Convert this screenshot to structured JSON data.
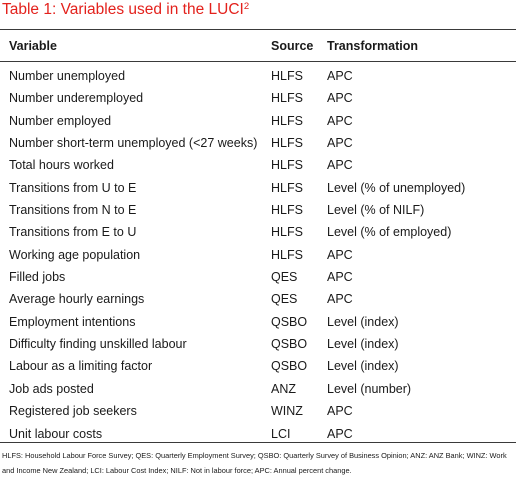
{
  "caption": {
    "text": "Table 1: Variables used in the LUCI",
    "footnote_ref": "2"
  },
  "columns": {
    "variable": "Variable",
    "source": "Source",
    "transformation": "Transformation"
  },
  "rows": [
    {
      "variable": "Number unemployed",
      "source": "HLFS",
      "transformation": "APC"
    },
    {
      "variable": "Number underemployed",
      "source": "HLFS",
      "transformation": "APC"
    },
    {
      "variable": "Number employed",
      "source": "HLFS",
      "transformation": "APC"
    },
    {
      "variable": "Number short-term unemployed (<27 weeks)",
      "source": "HLFS",
      "transformation": "APC"
    },
    {
      "variable": "Total hours worked",
      "source": "HLFS",
      "transformation": "APC"
    },
    {
      "variable": "Transitions from U to E",
      "source": "HLFS",
      "transformation": "Level (% of unemployed)"
    },
    {
      "variable": "Transitions from N to E",
      "source": "HLFS",
      "transformation": "Level (% of NILF)"
    },
    {
      "variable": "Transitions from E to U",
      "source": "HLFS",
      "transformation": "Level (% of employed)"
    },
    {
      "variable": "Working age population",
      "source": "HLFS",
      "transformation": "APC"
    },
    {
      "variable": "Filled jobs",
      "source": "QES",
      "transformation": "APC"
    },
    {
      "variable": "Average hourly earnings",
      "source": "QES",
      "transformation": "APC"
    },
    {
      "variable": "Employment intentions",
      "source": "QSBO",
      "transformation": "Level (index)"
    },
    {
      "variable": "Difficulty finding unskilled labour",
      "source": "QSBO",
      "transformation": "Level (index)"
    },
    {
      "variable": "Labour as a limiting factor",
      "source": "QSBO",
      "transformation": "Level (index)"
    },
    {
      "variable": "Job ads posted",
      "source": "ANZ",
      "transformation": "Level (number)"
    },
    {
      "variable": "Registered job seekers",
      "source": "WINZ",
      "transformation": "APC"
    },
    {
      "variable": "Unit labour costs",
      "source": "LCI",
      "transformation": "APC"
    }
  ],
  "footnote": "HLFS: Household Labour Force Survey; QES: Quarterly Employment Survey; QSBO: Quarterly Survey of Business Opinion; ANZ: ANZ Bank; WINZ: Work and Income New Zealand; LCI: Labour Cost Index; NILF: Not in labour force; APC: Annual percent change.",
  "colors": {
    "caption": "#e3211c",
    "text": "#1a1a1a",
    "rule": "#3a3a3a"
  }
}
